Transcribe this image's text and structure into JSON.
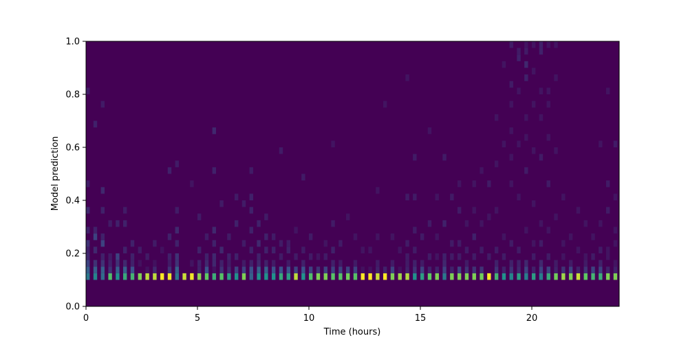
{
  "chart_data": {
    "type": "heatmap",
    "title": "",
    "xlabel": "Time (hours)",
    "ylabel": "Model prediction",
    "xlim": [
      0,
      23.92
    ],
    "ylim": [
      0,
      1.0
    ],
    "xticks": [
      "0",
      "5",
      "10",
      "15",
      "20"
    ],
    "yticks": [
      "0.0",
      "0.2",
      "0.4",
      "0.6",
      "0.8",
      "1.0"
    ],
    "colormap": "viridis",
    "background_color": "#440154",
    "grid": false,
    "time_step_hours": 0.3333,
    "time_bin_width_hours": 0.1667,
    "prediction_bin_width": 0.025,
    "main_bin_low": 0.1,
    "second_bin_low": 0.125,
    "main": [
      0.4,
      0.45,
      0.35,
      0.7,
      0.5,
      0.6,
      0.65,
      0.8,
      0.9,
      0.9,
      1.0,
      0.98,
      0.4,
      0.92,
      0.98,
      0.82,
      0.75,
      0.62,
      0.72,
      0.55,
      0.5,
      0.8,
      0.3,
      0.5,
      0.5,
      0.5,
      0.6,
      0.55,
      0.9,
      0.5,
      0.7,
      0.8,
      0.8,
      0.72,
      0.72,
      0.78,
      0.72,
      1.0,
      1.0,
      0.92,
      1.0,
      0.8,
      0.85,
      0.88,
      0.5,
      0.55,
      0.75,
      0.8,
      0.4,
      0.8,
      0.8,
      0.8,
      0.8,
      0.78,
      1.0,
      0.65,
      0.5,
      0.45,
      0.55,
      0.42,
      0.55,
      0.42,
      0.6,
      0.78,
      0.85,
      0.8,
      0.92,
      0.75,
      0.65,
      0.62,
      0.8,
      0.8
    ],
    "second": [
      0.3,
      0.3,
      0.3,
      0.15,
      0.3,
      0.3,
      0.25,
      0,
      0.05,
      0.12,
      0,
      0.15,
      0.3,
      0,
      0,
      0.1,
      0.25,
      0.05,
      0.15,
      0.12,
      0.2,
      0.2,
      0.25,
      0.3,
      0.3,
      0.25,
      0.25,
      0.25,
      0.2,
      0.25,
      0.2,
      0.15,
      0.2,
      0.2,
      0.2,
      0.2,
      0.2,
      0.05,
      0.05,
      0.1,
      0.1,
      0.2,
      0.05,
      0.1,
      0.15,
      0.2,
      0.1,
      0.1,
      0.2,
      0.1,
      0.2,
      0.15,
      0.15,
      0.15,
      0,
      0.15,
      0.1,
      0.15,
      0.12,
      0.2,
      0.1,
      0.2,
      0.2,
      0.1,
      0.15,
      0.2,
      0.1,
      0.15,
      0.2,
      0.2,
      0.1,
      0.1
    ],
    "upper": [
      [
        [
          0.15,
          0.2
        ],
        [
          0.175,
          0.12
        ],
        [
          0.2,
          0.1
        ],
        [
          0.225,
          0.15
        ],
        [
          0.275,
          0.1
        ],
        [
          0.35,
          0.12
        ],
        [
          0.45,
          0.08
        ],
        [
          0.8,
          0.08
        ]
      ],
      [
        [
          0.15,
          0.15
        ],
        [
          0.2,
          0.12
        ],
        [
          0.25,
          0.2
        ],
        [
          0.275,
          0.1
        ],
        [
          0.675,
          0.1
        ]
      ],
      [
        [
          0.15,
          0.15
        ],
        [
          0.175,
          0.1
        ],
        [
          0.225,
          0.2
        ],
        [
          0.25,
          0.1
        ],
        [
          0.35,
          0.1
        ],
        [
          0.425,
          0.12
        ],
        [
          0.75,
          0.08
        ]
      ],
      [
        [
          0.15,
          0.1
        ],
        [
          0.175,
          0.08
        ],
        [
          0.3,
          0.08
        ]
      ],
      [
        [
          0.15,
          0.15
        ],
        [
          0.175,
          0.2
        ],
        [
          0.3,
          0.1
        ]
      ],
      [
        [
          0.15,
          0.12
        ],
        [
          0.2,
          0.1
        ],
        [
          0.3,
          0.1
        ],
        [
          0.35,
          0.08
        ]
      ],
      [
        [
          0.15,
          0.1
        ],
        [
          0.175,
          0.1
        ],
        [
          0.225,
          0.1
        ]
      ],
      [
        [
          0.15,
          0.05
        ],
        [
          0.2,
          0.08
        ]
      ],
      [
        [
          0.175,
          0.08
        ]
      ],
      [
        [
          0.15,
          0.05
        ],
        [
          0.225,
          0.08
        ]
      ],
      [
        [
          0.2,
          0.05
        ]
      ],
      [
        [
          0.15,
          0.08
        ],
        [
          0.175,
          0.1
        ],
        [
          0.25,
          0.1
        ],
        [
          0.5,
          0.1
        ]
      ],
      [
        [
          0.15,
          0.15
        ],
        [
          0.175,
          0.15
        ],
        [
          0.225,
          0.1
        ],
        [
          0.275,
          0.12
        ],
        [
          0.35,
          0.08
        ],
        [
          0.525,
          0.08
        ]
      ],
      [],
      [
        [
          0.15,
          0.06
        ],
        [
          0.45,
          0.06
        ]
      ],
      [
        [
          0.15,
          0.1
        ],
        [
          0.2,
          0.1
        ],
        [
          0.325,
          0.08
        ]
      ],
      [
        [
          0.15,
          0.12
        ],
        [
          0.175,
          0.1
        ],
        [
          0.25,
          0.08
        ]
      ],
      [
        [
          0.15,
          0.12
        ],
        [
          0.175,
          0.12
        ],
        [
          0.225,
          0.1
        ],
        [
          0.275,
          0.12
        ],
        [
          0.5,
          0.1
        ],
        [
          0.65,
          0.12
        ]
      ],
      [
        [
          0.15,
          0.1
        ],
        [
          0.2,
          0.12
        ],
        [
          0.375,
          0.08
        ]
      ],
      [
        [
          0.15,
          0.08
        ],
        [
          0.175,
          0.1
        ],
        [
          0.25,
          0.08
        ]
      ],
      [
        [
          0.175,
          0.1
        ],
        [
          0.3,
          0.1
        ],
        [
          0.4,
          0.08
        ]
      ],
      [
        [
          0.15,
          0.08
        ],
        [
          0.225,
          0.08
        ],
        [
          0.375,
          0.08
        ]
      ],
      [
        [
          0.15,
          0.1
        ],
        [
          0.2,
          0.1
        ],
        [
          0.275,
          0.1
        ],
        [
          0.35,
          0.1
        ],
        [
          0.4,
          0.1
        ],
        [
          0.5,
          0.08
        ]
      ],
      [
        [
          0.15,
          0.12
        ],
        [
          0.175,
          0.1
        ],
        [
          0.225,
          0.12
        ],
        [
          0.3,
          0.1
        ]
      ],
      [
        [
          0.15,
          0.1
        ],
        [
          0.2,
          0.1
        ],
        [
          0.25,
          0.1
        ],
        [
          0.325,
          0.08
        ]
      ],
      [
        [
          0.15,
          0.08
        ],
        [
          0.2,
          0.1
        ],
        [
          0.25,
          0.08
        ]
      ],
      [
        [
          0.175,
          0.08
        ],
        [
          0.225,
          0.08
        ],
        [
          0.575,
          0.08
        ]
      ],
      [
        [
          0.15,
          0.08
        ],
        [
          0.2,
          0.1
        ],
        [
          0.225,
          0.08
        ]
      ],
      [
        [
          0.175,
          0.08
        ],
        [
          0.275,
          0.06
        ]
      ],
      [
        [
          0.15,
          0.1
        ],
        [
          0.2,
          0.08
        ],
        [
          0.475,
          0.08
        ]
      ],
      [
        [
          0.175,
          0.08
        ],
        [
          0.25,
          0.08
        ]
      ],
      [
        [
          0.175,
          0.06
        ]
      ],
      [
        [
          0.175,
          0.08
        ],
        [
          0.225,
          0.06
        ]
      ],
      [
        [
          0.15,
          0.1
        ],
        [
          0.2,
          0.1
        ],
        [
          0.3,
          0.08
        ],
        [
          0.6,
          0.06
        ]
      ],
      [
        [
          0.15,
          0.08
        ],
        [
          0.225,
          0.08
        ]
      ],
      [
        [
          0.325,
          0.06
        ]
      ],
      [
        [
          0.15,
          0.08
        ],
        [
          0.25,
          0.06
        ]
      ],
      [
        [
          0.2,
          0.06
        ]
      ],
      [
        [
          0.2,
          0.06
        ]
      ],
      [
        [
          0.15,
          0.08
        ],
        [
          0.25,
          0.06
        ],
        [
          0.425,
          0.06
        ]
      ],
      [
        [
          0.75,
          0.06
        ]
      ],
      [
        [
          0.15,
          0.08
        ],
        [
          0.25,
          0.06
        ]
      ],
      [
        [
          0.2,
          0.06
        ]
      ],
      [
        [
          0.15,
          0.08
        ],
        [
          0.175,
          0.08
        ],
        [
          0.225,
          0.08
        ],
        [
          0.4,
          0.08
        ],
        [
          0.85,
          0.06
        ]
      ],
      [
        [
          0.15,
          0.1
        ],
        [
          0.2,
          0.08
        ],
        [
          0.275,
          0.08
        ],
        [
          0.4,
          0.08
        ],
        [
          0.55,
          0.08
        ]
      ],
      [
        [
          0.15,
          0.08
        ],
        [
          0.25,
          0.08
        ]
      ],
      [
        [
          0.175,
          0.08
        ],
        [
          0.3,
          0.08
        ],
        [
          0.65,
          0.06
        ]
      ],
      [
        [
          0.175,
          0.06
        ],
        [
          0.25,
          0.06
        ],
        [
          0.4,
          0.06
        ]
      ],
      [
        [
          0.15,
          0.12
        ],
        [
          0.175,
          0.1
        ],
        [
          0.3,
          0.1
        ],
        [
          0.55,
          0.08
        ]
      ],
      [
        [
          0.175,
          0.08
        ],
        [
          0.225,
          0.08
        ],
        [
          0.4,
          0.08
        ]
      ],
      [
        [
          0.175,
          0.08
        ],
        [
          0.225,
          0.08
        ],
        [
          0.35,
          0.08
        ],
        [
          0.45,
          0.06
        ]
      ],
      [
        [
          0.15,
          0.08
        ],
        [
          0.2,
          0.08
        ],
        [
          0.3,
          0.06
        ]
      ],
      [
        [
          0.175,
          0.08
        ],
        [
          0.25,
          0.1
        ],
        [
          0.35,
          0.06
        ],
        [
          0.45,
          0.06
        ]
      ],
      [
        [
          0.2,
          0.08
        ],
        [
          0.3,
          0.06
        ],
        [
          0.5,
          0.06
        ]
      ],
      [
        [
          0.175,
          0.08
        ],
        [
          0.325,
          0.06
        ],
        [
          0.45,
          0.08
        ]
      ],
      [
        [
          0.15,
          0.1
        ],
        [
          0.2,
          0.08
        ],
        [
          0.35,
          0.06
        ],
        [
          0.525,
          0.06
        ],
        [
          0.7,
          0.06
        ]
      ],
      [
        [
          0.175,
          0.08
        ],
        [
          0.25,
          0.06
        ],
        [
          0.6,
          0.06
        ],
        [
          0.9,
          0.06
        ]
      ],
      [
        [
          0.15,
          0.1
        ],
        [
          0.225,
          0.08
        ],
        [
          0.45,
          0.06
        ],
        [
          0.55,
          0.06
        ],
        [
          0.65,
          0.06
        ],
        [
          0.75,
          0.06
        ],
        [
          0.825,
          0.08
        ],
        [
          0.975,
          0.08
        ]
      ],
      [
        [
          0.15,
          0.1
        ],
        [
          0.2,
          0.08
        ],
        [
          0.4,
          0.06
        ],
        [
          0.6,
          0.06
        ],
        [
          0.8,
          0.06
        ],
        [
          0.925,
          0.1
        ],
        [
          0.95,
          0.08
        ]
      ],
      [
        [
          0.15,
          0.12
        ],
        [
          0.275,
          0.06
        ],
        [
          0.5,
          0.08
        ],
        [
          0.625,
          0.06
        ],
        [
          0.7,
          0.06
        ],
        [
          0.85,
          0.1
        ],
        [
          0.9,
          0.12
        ],
        [
          0.95,
          0.08
        ],
        [
          0.975,
          0.06
        ]
      ],
      [
        [
          0.175,
          0.08
        ],
        [
          0.225,
          0.06
        ],
        [
          0.375,
          0.06
        ],
        [
          0.575,
          0.06
        ],
        [
          0.75,
          0.06
        ],
        [
          0.875,
          0.06
        ],
        [
          0.975,
          0.06
        ]
      ],
      [
        [
          0.15,
          0.12
        ],
        [
          0.225,
          0.08
        ],
        [
          0.3,
          0.06
        ],
        [
          0.55,
          0.08
        ],
        [
          0.7,
          0.06
        ],
        [
          0.8,
          0.06
        ],
        [
          0.95,
          0.1
        ],
        [
          0.975,
          0.1
        ]
      ],
      [
        [
          0.175,
          0.08
        ],
        [
          0.275,
          0.06
        ],
        [
          0.45,
          0.08
        ],
        [
          0.625,
          0.06
        ],
        [
          0.75,
          0.06
        ],
        [
          0.8,
          0.06
        ],
        [
          0.975,
          0.06
        ]
      ],
      [
        [
          0.15,
          0.08
        ],
        [
          0.325,
          0.06
        ],
        [
          0.575,
          0.06
        ],
        [
          0.85,
          0.06
        ],
        [
          0.975,
          0.06
        ]
      ],
      [
        [
          0.175,
          0.06
        ],
        [
          0.225,
          0.06
        ],
        [
          0.4,
          0.06
        ]
      ],
      [
        [
          0.15,
          0.08
        ],
        [
          0.25,
          0.06
        ]
      ],
      [
        [
          0.2,
          0.06
        ],
        [
          0.35,
          0.06
        ]
      ],
      [
        [
          0.15,
          0.08
        ],
        [
          0.175,
          0.06
        ],
        [
          0.3,
          0.06
        ]
      ],
      [
        [
          0.175,
          0.08
        ],
        [
          0.25,
          0.06
        ]
      ],
      [
        [
          0.15,
          0.1
        ],
        [
          0.2,
          0.08
        ],
        [
          0.3,
          0.06
        ],
        [
          0.6,
          0.06
        ]
      ],
      [
        [
          0.175,
          0.06
        ],
        [
          0.2,
          0.06
        ],
        [
          0.35,
          0.08
        ],
        [
          0.45,
          0.08
        ],
        [
          0.8,
          0.06
        ]
      ],
      [
        [
          0.15,
          0.06
        ],
        [
          0.225,
          0.06
        ],
        [
          0.275,
          0.06
        ],
        [
          0.4,
          0.06
        ],
        [
          0.6,
          0.08
        ]
      ]
    ]
  }
}
